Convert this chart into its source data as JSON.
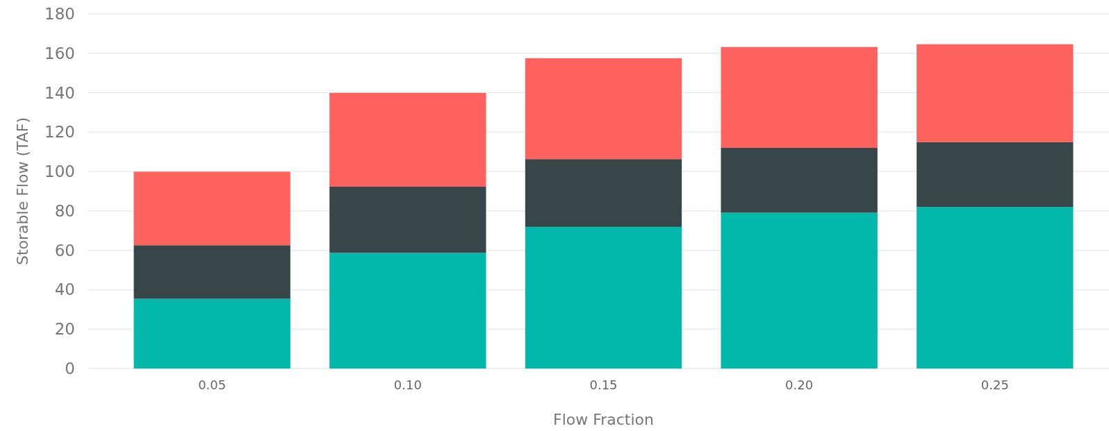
{
  "chart_data": {
    "type": "bar",
    "stacked": true,
    "xlabel": "Flow Fraction",
    "ylabel": "Storable Flow (TAF)",
    "categories": [
      "0.05",
      "0.10",
      "0.15",
      "0.20",
      "0.25"
    ],
    "series": [
      {
        "color": "#01b8aa",
        "values": [
          35.4,
          58.7,
          71.9,
          79.1,
          82.0
        ]
      },
      {
        "color": "#374649",
        "values": [
          27.2,
          33.6,
          34.4,
          32.9,
          32.9
        ]
      },
      {
        "color": "#fd625e",
        "values": [
          37.3,
          47.6,
          51.2,
          51.2,
          49.7
        ]
      }
    ],
    "ylim": [
      0,
      180
    ],
    "yticks": [
      0,
      20,
      40,
      60,
      80,
      100,
      120,
      140,
      160,
      180
    ],
    "grid": "y"
  }
}
